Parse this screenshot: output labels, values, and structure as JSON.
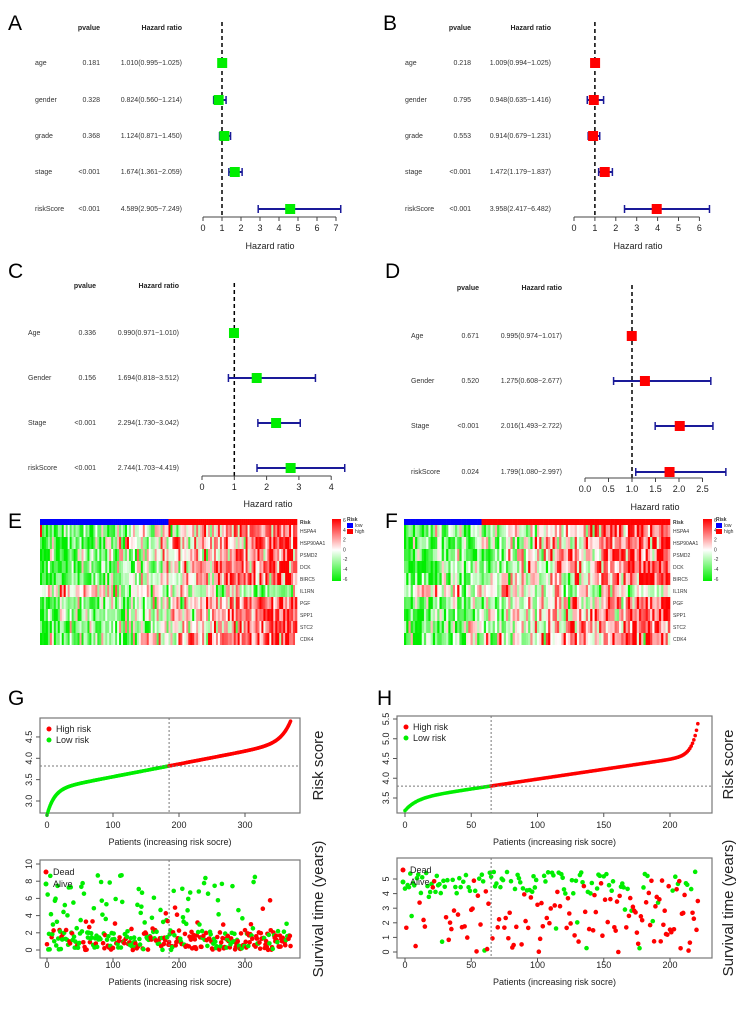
{
  "colors": {
    "low": "#00ee00",
    "high": "#ff0000",
    "bar": "#1a1a99",
    "lowRisk": "#0000ff"
  },
  "chart_data": [
    {
      "panel": "A",
      "type": "forest",
      "header": {
        "pvalue": "pvalue",
        "hr": "Hazard ratio"
      },
      "xlabel": "Hazard ratio",
      "ticks": [
        0,
        1,
        2,
        3,
        4,
        5,
        6,
        7
      ],
      "box_color": "#00ee00",
      "rows": [
        {
          "name": "age",
          "p": "0.181",
          "text": "1.010(0.995−1.025)",
          "hr": 1.01,
          "lo": 0.995,
          "hi": 1.025
        },
        {
          "name": "gender",
          "p": "0.328",
          "text": "0.824(0.560−1.214)",
          "hr": 0.824,
          "lo": 0.56,
          "hi": 1.214
        },
        {
          "name": "grade",
          "p": "0.368",
          "text": "1.124(0.871−1.450)",
          "hr": 1.124,
          "lo": 0.871,
          "hi": 1.45
        },
        {
          "name": "stage",
          "p": "<0.001",
          "text": "1.674(1.361−2.059)",
          "hr": 1.674,
          "lo": 1.361,
          "hi": 2.059
        },
        {
          "name": "riskScore",
          "p": "<0.001",
          "text": "4.589(2.905−7.249)",
          "hr": 4.589,
          "lo": 2.905,
          "hi": 7.249
        }
      ]
    },
    {
      "panel": "B",
      "type": "forest",
      "header": {
        "pvalue": "pvalue",
        "hr": "Hazard ratio"
      },
      "xlabel": "Hazard ratio",
      "ticks": [
        0,
        1,
        2,
        3,
        4,
        5,
        6
      ],
      "box_color": "#ff0000",
      "rows": [
        {
          "name": "age",
          "p": "0.218",
          "text": "1.009(0.994−1.025)",
          "hr": 1.009,
          "lo": 0.994,
          "hi": 1.025
        },
        {
          "name": "gender",
          "p": "0.795",
          "text": "0.948(0.635−1.416)",
          "hr": 0.948,
          "lo": 0.635,
          "hi": 1.416
        },
        {
          "name": "grade",
          "p": "0.553",
          "text": "0.914(0.679−1.231)",
          "hr": 0.914,
          "lo": 0.679,
          "hi": 1.231
        },
        {
          "name": "stage",
          "p": "<0.001",
          "text": "1.472(1.179−1.837)",
          "hr": 1.472,
          "lo": 1.179,
          "hi": 1.837
        },
        {
          "name": "riskScore",
          "p": "<0.001",
          "text": "3.958(2.417−6.482)",
          "hr": 3.958,
          "lo": 2.417,
          "hi": 6.482
        }
      ]
    },
    {
      "panel": "C",
      "type": "forest",
      "header": {
        "pvalue": "pvalue",
        "hr": "Hazard ratio"
      },
      "xlabel": "Hazard ratio",
      "ticks": [
        0,
        1,
        2,
        3,
        4
      ],
      "box_color": "#00ee00",
      "rows": [
        {
          "name": "Age",
          "p": "0.336",
          "text": "0.990(0.971−1.010)",
          "hr": 0.99,
          "lo": 0.971,
          "hi": 1.01
        },
        {
          "name": "Gender",
          "p": "0.156",
          "text": "1.694(0.818−3.512)",
          "hr": 1.694,
          "lo": 0.818,
          "hi": 3.512
        },
        {
          "name": "Stage",
          "p": "<0.001",
          "text": "2.294(1.730−3.042)",
          "hr": 2.294,
          "lo": 1.73,
          "hi": 3.042
        },
        {
          "name": "riskScore",
          "p": "<0.001",
          "text": "2.744(1.703−4.419)",
          "hr": 2.744,
          "lo": 1.703,
          "hi": 4.419
        }
      ]
    },
    {
      "panel": "D",
      "type": "forest",
      "header": {
        "pvalue": "pvalue",
        "hr": "Hazard ratio"
      },
      "xlabel": "Hazard ratio",
      "ticks": [
        "0.0",
        "0.5",
        "1.0",
        "1.5",
        "2.0",
        "2.5"
      ],
      "box_color": "#ff0000",
      "rows": [
        {
          "name": "Age",
          "p": "0.671",
          "text": "0.995(0.974−1.017)",
          "hr": 0.995,
          "lo": 0.974,
          "hi": 1.017
        },
        {
          "name": "Gender",
          "p": "0.520",
          "text": "1.275(0.608−2.677)",
          "hr": 1.275,
          "lo": 0.608,
          "hi": 2.677
        },
        {
          "name": "Stage",
          "p": "<0.001",
          "text": "2.016(1.493−2.722)",
          "hr": 2.016,
          "lo": 1.493,
          "hi": 2.722
        },
        {
          "name": "riskScore",
          "p": "0.024",
          "text": "1.799(1.080−2.997)",
          "hr": 1.799,
          "lo": 1.08,
          "hi": 2.997
        }
      ]
    },
    {
      "panel": "E",
      "type": "heatmap",
      "genes": [
        "HSPA4",
        "HSP90AA1",
        "PSMD2",
        "DCK",
        "BIRC5",
        "IL1RN",
        "PGF",
        "SPP1",
        "STC2",
        "CDK4"
      ],
      "low_fraction": 0.5,
      "colorbar_ticks": [
        "6",
        "4",
        "2",
        "0",
        "-2",
        "-4",
        "-6"
      ],
      "legend_title": "Risk",
      "legend": [
        "low",
        "high"
      ],
      "annotation_label": "Risk"
    },
    {
      "panel": "F",
      "type": "heatmap",
      "genes": [
        "HSPA4",
        "HSP90AA1",
        "PSMD2",
        "DCK",
        "BIRC5",
        "IL1RN",
        "PGF",
        "SPP1",
        "STC2",
        "CDK4"
      ],
      "low_fraction": 0.29,
      "colorbar_ticks": [
        "6",
        "4",
        "2",
        "0",
        "-2",
        "-4",
        "-6"
      ],
      "legend_title": "Risk",
      "legend": [
        "low",
        "high"
      ],
      "annotation_label": "Risk"
    },
    {
      "panel": "G",
      "type": "scatter",
      "n": 370,
      "cutoff_index": 185,
      "cutoff_score": 3.82,
      "score_range": [
        2.8,
        4.88
      ],
      "risk": {
        "ylabel": "Risk score",
        "xlabel": "Patients (increasing risk socre)",
        "yticks": [
          "3.0",
          "3.5",
          "4.0",
          "4.5"
        ],
        "xticks": [
          0,
          100,
          200,
          300
        ],
        "legend": [
          "High risk",
          "Low risk"
        ]
      },
      "survival": {
        "ylabel": "Survival time (years)",
        "xlabel": "Patients (increasing risk socre)",
        "yticks": [
          "0",
          "2",
          "4",
          "6",
          "8",
          "10"
        ],
        "xticks": [
          0,
          100,
          200,
          300
        ],
        "legend": [
          "Dead",
          "Alive"
        ],
        "ymax": 10
      }
    },
    {
      "panel": "H",
      "type": "scatter",
      "n": 222,
      "cutoff_index": 65,
      "cutoff_score": 3.8,
      "score_range": [
        3.2,
        5.45
      ],
      "risk": {
        "ylabel": "Risk score",
        "xlabel": "Patients (increasing risk socre)",
        "yticks": [
          "3.5",
          "4.0",
          "4.5",
          "5.0",
          "5.5"
        ],
        "xticks": [
          0,
          50,
          100,
          150,
          200
        ],
        "legend": [
          "High risk",
          "Low risk"
        ]
      },
      "survival": {
        "ylabel": "Survival time (years)",
        "xlabel": "Patients (increasing risk socre)",
        "yticks": [
          "0",
          "1",
          "2",
          "3",
          "4",
          "5"
        ],
        "xticks": [
          0,
          50,
          100,
          150,
          200
        ],
        "legend": [
          "Dead",
          "Alive"
        ],
        "ymax": 5.5
      }
    }
  ]
}
